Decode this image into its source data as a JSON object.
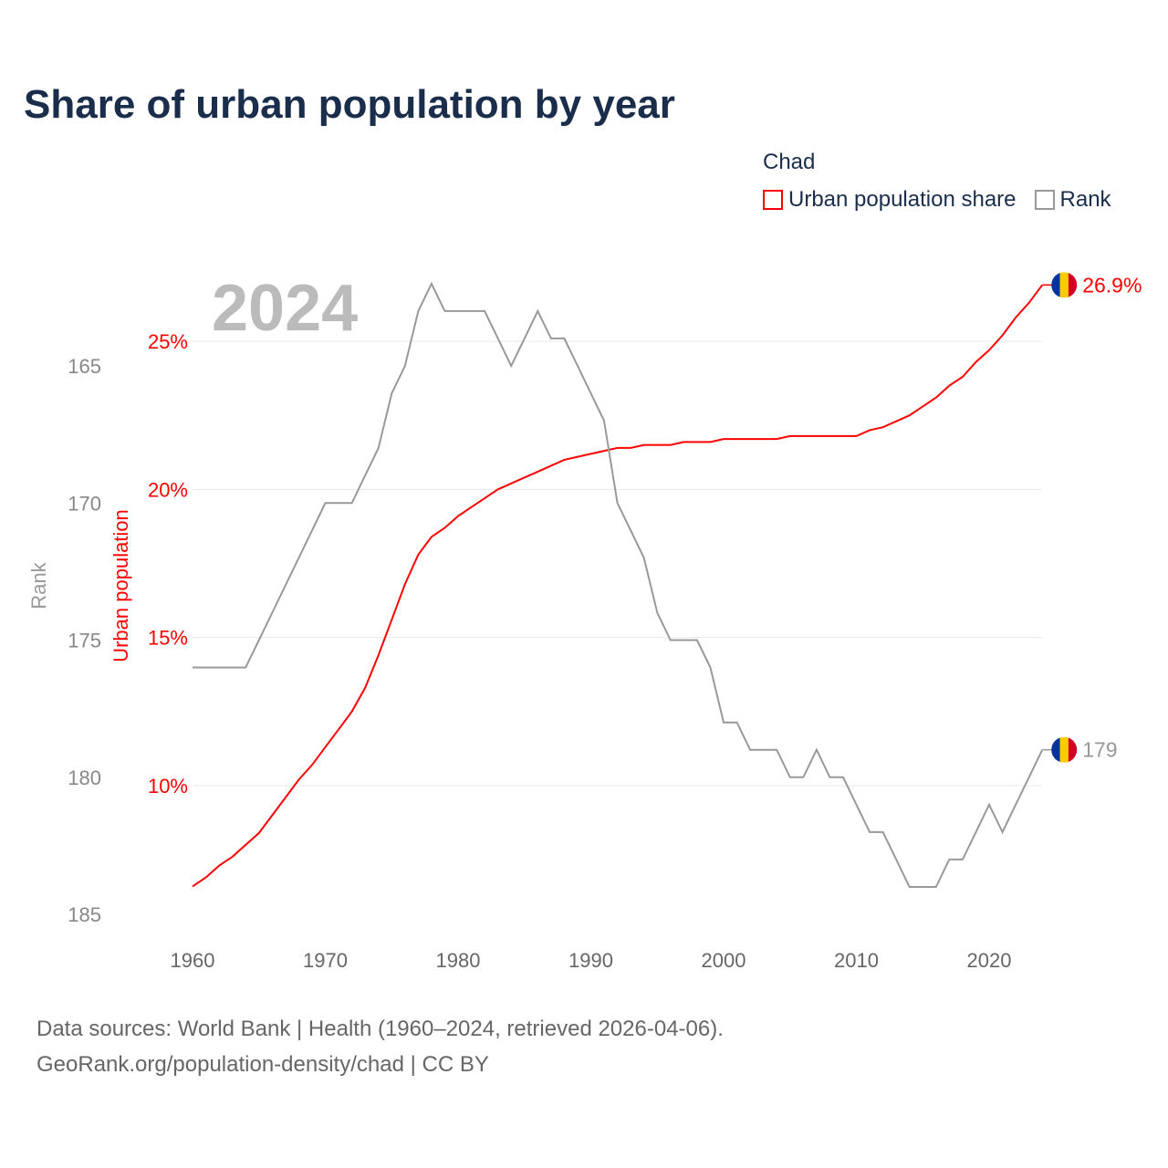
{
  "title": "Share of urban population by year",
  "legend": {
    "title": "Chad",
    "items": [
      {
        "label": "Urban population share",
        "color": "#ff0000"
      },
      {
        "label": "Rank",
        "color": "#999999"
      }
    ]
  },
  "year_label": "2024",
  "source": {
    "line1": "Data sources: World Bank | Health (1960–2024, retrieved 2026-04-06).",
    "line2": "GeoRank.org/population-density/chad | CC BY"
  },
  "chart_data": {
    "type": "line",
    "title": "Share of urban population by year",
    "xlabel": "",
    "ylabel_left_outer": "Rank",
    "ylabel_left_inner": "Urban population",
    "x": [
      1960,
      1961,
      1962,
      1963,
      1964,
      1965,
      1966,
      1967,
      1968,
      1969,
      1970,
      1971,
      1972,
      1973,
      1974,
      1975,
      1976,
      1977,
      1978,
      1979,
      1980,
      1981,
      1982,
      1983,
      1984,
      1985,
      1986,
      1987,
      1988,
      1989,
      1990,
      1991,
      1992,
      1993,
      1994,
      1995,
      1996,
      1997,
      1998,
      1999,
      2000,
      2001,
      2002,
      2003,
      2004,
      2005,
      2006,
      2007,
      2008,
      2009,
      2010,
      2011,
      2012,
      2013,
      2014,
      2015,
      2016,
      2017,
      2018,
      2019,
      2020,
      2021,
      2022,
      2023,
      2024
    ],
    "xticks": [
      1960,
      1970,
      1980,
      1990,
      2000,
      2010,
      2020
    ],
    "xlim": [
      1960,
      2024
    ],
    "series": [
      {
        "name": "Urban population share",
        "axis": "urban",
        "color": "#ff0000",
        "unit": "%",
        "values": [
          6.6,
          6.9,
          7.3,
          7.6,
          8.0,
          8.4,
          9.0,
          9.6,
          10.2,
          10.7,
          11.3,
          11.9,
          12.5,
          13.3,
          14.4,
          15.6,
          16.8,
          17.8,
          18.4,
          18.7,
          19.1,
          19.4,
          19.7,
          20.0,
          20.2,
          20.4,
          20.6,
          20.8,
          21.0,
          21.1,
          21.2,
          21.3,
          21.4,
          21.4,
          21.5,
          21.5,
          21.5,
          21.6,
          21.6,
          21.6,
          21.7,
          21.7,
          21.7,
          21.7,
          21.7,
          21.8,
          21.8,
          21.8,
          21.8,
          21.8,
          21.8,
          22.0,
          22.1,
          22.3,
          22.5,
          22.8,
          23.1,
          23.5,
          23.8,
          24.3,
          24.7,
          25.2,
          25.8,
          26.3,
          26.9
        ],
        "end_label": "26.9%"
      },
      {
        "name": "Rank",
        "axis": "rank",
        "color": "#999999",
        "values": [
          176,
          176,
          176,
          176,
          176,
          175,
          174,
          173,
          172,
          171,
          170,
          170,
          170,
          169,
          168,
          166,
          165,
          163,
          162,
          163,
          163,
          163,
          163,
          164,
          165,
          164,
          163,
          164,
          164,
          165,
          166,
          167,
          170,
          171,
          172,
          174,
          175,
          175,
          175,
          176,
          178,
          178,
          179,
          179,
          179,
          180,
          180,
          179,
          180,
          180,
          181,
          182,
          182,
          183,
          184,
          184,
          184,
          183,
          183,
          182,
          181,
          182,
          181,
          180,
          179
        ],
        "end_label": "179"
      }
    ],
    "urban_axis": {
      "ticks": [
        10,
        15,
        20,
        25
      ],
      "tick_labels": [
        "10%",
        "15%",
        "20%",
        "25%"
      ],
      "range_ref": [
        10,
        25
      ]
    },
    "rank_axis": {
      "ticks": [
        165,
        170,
        175,
        180,
        185
      ],
      "tick_labels": [
        "165",
        "170",
        "175",
        "180",
        "185"
      ],
      "inverted": true
    },
    "grid": true,
    "legend_position": "top-right",
    "flag_colors": [
      "#0033a0",
      "#fecb00",
      "#d00027"
    ]
  }
}
